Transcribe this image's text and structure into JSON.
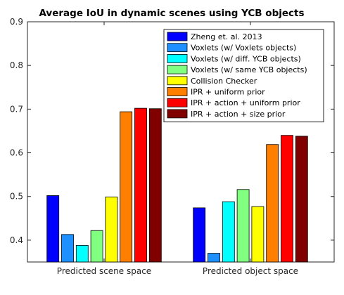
{
  "chart_data": {
    "type": "bar",
    "title": "Average IoU in dynamic scenes using YCB objects",
    "xlabel": "",
    "ylabel": "",
    "ylim": [
      0.35,
      0.9
    ],
    "yticks": [
      "0.4",
      "0.5",
      "0.6",
      "0.7",
      "0.8",
      "0.9"
    ],
    "grid": false,
    "legend_position": "top-right",
    "categories": [
      "Predicted scene space",
      "Predicted object space"
    ],
    "series": [
      {
        "name": "Zheng et. al. 2013",
        "color": "#0000ff",
        "values": [
          0.502,
          0.474
        ]
      },
      {
        "name": "Voxlets (w/ Voxlets objects)",
        "color": "#1e90ff",
        "values": [
          0.413,
          0.37
        ]
      },
      {
        "name": "Voxlets (w/ diff. YCB objects)",
        "color": "#00ffff",
        "values": [
          0.388,
          0.488
        ]
      },
      {
        "name": "Voxlets (w/ same YCB objects)",
        "color": "#80ff80",
        "values": [
          0.422,
          0.516
        ]
      },
      {
        "name": "Collision Checker",
        "color": "#ffff00",
        "values": [
          0.499,
          0.477
        ]
      },
      {
        "name": "IPR + uniform prior",
        "color": "#ff8000",
        "values": [
          0.694,
          0.619
        ]
      },
      {
        "name": "IPR + action + uniform prior",
        "color": "#ff0000",
        "values": [
          0.702,
          0.64
        ]
      },
      {
        "name": "IPR + action + size prior",
        "color": "#800000",
        "values": [
          0.701,
          0.638
        ]
      }
    ]
  }
}
